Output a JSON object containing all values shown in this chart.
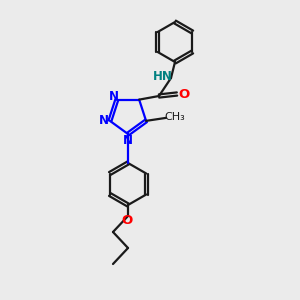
{
  "bg_color": "#ebebeb",
  "bond_color": "#1a1a1a",
  "n_color": "#0000ff",
  "o_color": "#ff0000",
  "nh_color": "#008080",
  "font_size": 8.5,
  "line_width": 1.6,
  "fig_size": [
    3.0,
    3.0
  ],
  "dpi": 100,
  "triazole_n_labels": [
    "N",
    "N",
    "N"
  ],
  "methyl_label": "CH₃",
  "nh_label": "HN",
  "o_label": "O"
}
